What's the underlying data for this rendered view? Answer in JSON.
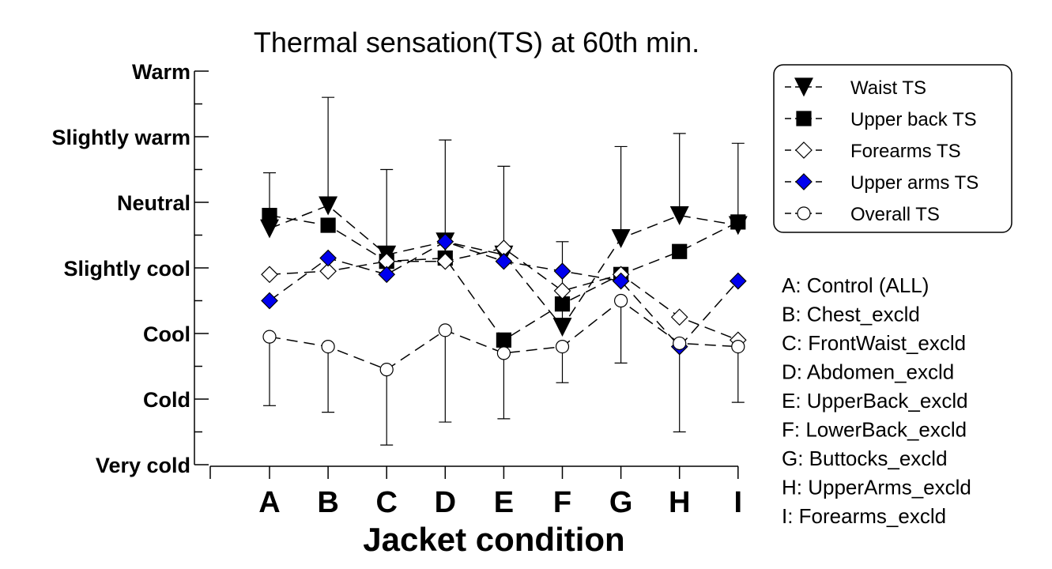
{
  "chart_data": {
    "type": "line",
    "title": "Thermal sensation(TS) at 60th min.",
    "xlabel": "Jacket condition",
    "ylabel": "",
    "categories": [
      "A",
      "B",
      "C",
      "D",
      "E",
      "F",
      "G",
      "H",
      "I"
    ],
    "ylim": [
      -3,
      3
    ],
    "y_ticks": [
      {
        "value": 3,
        "label": "Warm"
      },
      {
        "value": 2,
        "label": "Slightly warm"
      },
      {
        "value": 1,
        "label": "Neutral"
      },
      {
        "value": 0,
        "label": "Slightly cool"
      },
      {
        "value": -1,
        "label": "Cool"
      },
      {
        "value": -2,
        "label": "Cold"
      },
      {
        "value": -3,
        "label": "Very cold"
      }
    ],
    "series": [
      {
        "name": "Waist TS",
        "marker": "triangle-down",
        "fill": "#000000",
        "values": [
          0.6,
          0.95,
          0.2,
          0.4,
          0.2,
          -0.9,
          0.45,
          0.8,
          0.65
        ],
        "error_upper": [
          1.45,
          2.6,
          1.5,
          1.95,
          1.55,
          0.4,
          1.85,
          2.05,
          1.9
        ]
      },
      {
        "name": "Upper back TS",
        "marker": "square",
        "fill": "#000000",
        "values": [
          0.8,
          0.65,
          0.1,
          0.15,
          -1.1,
          -0.55,
          -0.1,
          0.25,
          0.7
        ]
      },
      {
        "name": "Forearms TS",
        "marker": "diamond",
        "fill": "#ffffff",
        "values": [
          -0.1,
          -0.05,
          0.1,
          0.1,
          0.3,
          -0.35,
          -0.1,
          -0.75,
          -1.1
        ]
      },
      {
        "name": "Upper arms TS",
        "marker": "diamond",
        "fill": "#0000ee",
        "values": [
          -0.5,
          0.15,
          -0.1,
          0.4,
          0.1,
          -0.05,
          -0.2,
          -1.2,
          -0.2
        ]
      },
      {
        "name": "Overall TS",
        "marker": "circle",
        "fill": "#ffffff",
        "values": [
          -1.05,
          -1.2,
          -1.55,
          -0.95,
          -1.3,
          -1.2,
          -0.5,
          -1.15,
          -1.2
        ],
        "error_lower": [
          -2.1,
          -2.2,
          -2.7,
          -2.35,
          -2.3,
          -1.75,
          -1.45,
          -2.5,
          -2.05
        ]
      }
    ],
    "legend_position": "top-right",
    "grid": false
  },
  "condition_key": [
    "A: Control (ALL)",
    "B: Chest_excld",
    "C: FrontWaist_excld",
    "D: Abdomen_excld",
    "E: UpperBack_excld",
    "F: LowerBack_excld",
    "G: Buttocks_excld",
    "H: UpperArms_excld",
    "I: Forearms_excld"
  ]
}
